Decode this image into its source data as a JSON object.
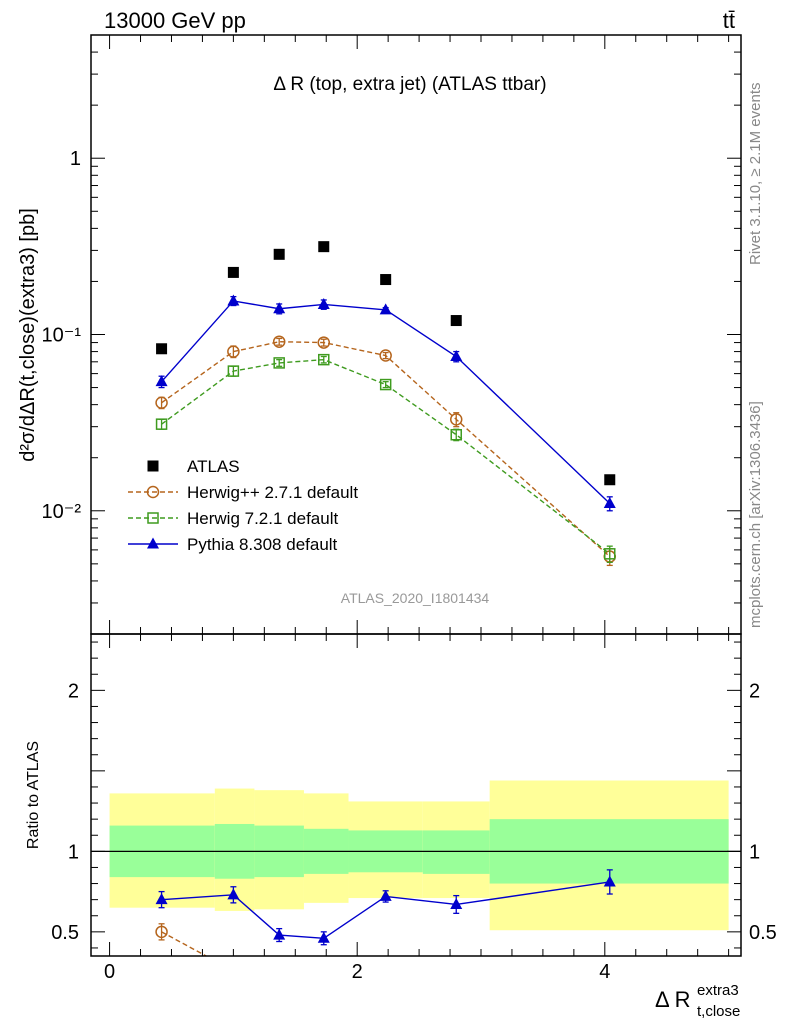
{
  "header": {
    "energy_label": "13000 GeV pp",
    "process_label": "tt̄",
    "plot_title": "Δ R (top, extra jet) (ATLAS ttbar)",
    "analysis_id": "ATLAS_2020_I1801434"
  },
  "side_labels": {
    "rivet": "Rivet 3.1.10, ≥ 2.1M events",
    "mcplots": "mcplots.cern.ch [arXiv:1306.3436]"
  },
  "axes": {
    "ylabel_main": "d²σ/dΔR(t,close)(extra3) [pb]",
    "ylabel_ratio": "Ratio to ATLAS",
    "xlabel_main": "Δ R",
    "xlabel_sup": "extra3",
    "xlabel_sub": "t,close"
  },
  "colors": {
    "atlas": "#000000",
    "herwigpp": "#b5651d",
    "herwig7": "#3f9b1f",
    "pythia": "#0000cc",
    "band_inner": "#99ff99",
    "band_outer": "#ffff99"
  },
  "chart_data": [
    {
      "type": "scatter",
      "panel": "main",
      "x_range": [
        -0.15,
        5.1
      ],
      "y_range": [
        0.002,
        5
      ],
      "y_scale": "log",
      "y_ticks": [
        {
          "value": 0.01,
          "label": "10⁻²"
        },
        {
          "value": 0.1,
          "label": "10⁻¹"
        },
        {
          "value": 1,
          "label": "1"
        }
      ],
      "x_ticks": [
        {
          "value": 0,
          "label": "0"
        },
        {
          "value": 2,
          "label": "2"
        },
        {
          "value": 4,
          "label": "4"
        }
      ],
      "legend_position": "bottom-left",
      "series": [
        {
          "name": "ATLAS",
          "style": "data",
          "points": [
            {
              "x": 0.42,
              "y": 0.083
            },
            {
              "x": 1.0,
              "y": 0.225
            },
            {
              "x": 1.37,
              "y": 0.285
            },
            {
              "x": 1.73,
              "y": 0.315
            },
            {
              "x": 2.23,
              "y": 0.205
            },
            {
              "x": 2.8,
              "y": 0.12
            },
            {
              "x": 4.04,
              "y": 0.015
            }
          ]
        },
        {
          "name": "Herwig++ 2.7.1 default",
          "style": "circle",
          "points": [
            {
              "x": 0.42,
              "y": 0.041,
              "err": 0.003
            },
            {
              "x": 1.0,
              "y": 0.08,
              "err": 0.006
            },
            {
              "x": 1.37,
              "y": 0.091,
              "err": 0.004
            },
            {
              "x": 1.73,
              "y": 0.09,
              "err": 0.004
            },
            {
              "x": 2.23,
              "y": 0.076,
              "err": 0.003
            },
            {
              "x": 2.8,
              "y": 0.033,
              "err": 0.003
            },
            {
              "x": 4.04,
              "y": 0.0055,
              "err": 0.0006
            }
          ]
        },
        {
          "name": "Herwig 7.2.1 default",
          "style": "square",
          "points": [
            {
              "x": 0.42,
              "y": 0.031,
              "err": 0.002
            },
            {
              "x": 1.0,
              "y": 0.062,
              "err": 0.004
            },
            {
              "x": 1.37,
              "y": 0.069,
              "err": 0.003
            },
            {
              "x": 1.73,
              "y": 0.072,
              "err": 0.003
            },
            {
              "x": 2.23,
              "y": 0.052,
              "err": 0.002
            },
            {
              "x": 2.8,
              "y": 0.027,
              "err": 0.002
            },
            {
              "x": 4.04,
              "y": 0.0057,
              "err": 0.0006
            }
          ]
        },
        {
          "name": "Pythia 8.308 default",
          "style": "triangle",
          "points": [
            {
              "x": 0.42,
              "y": 0.054,
              "err": 0.004
            },
            {
              "x": 1.0,
              "y": 0.155,
              "err": 0.009
            },
            {
              "x": 1.37,
              "y": 0.14,
              "err": 0.009
            },
            {
              "x": 1.73,
              "y": 0.148,
              "err": 0.009
            },
            {
              "x": 2.23,
              "y": 0.138,
              "err": 0.004
            },
            {
              "x": 2.8,
              "y": 0.075,
              "err": 0.005
            },
            {
              "x": 4.04,
              "y": 0.011,
              "err": 0.001
            }
          ]
        }
      ]
    },
    {
      "type": "line",
      "panel": "ratio",
      "x_range": [
        -0.15,
        5.1
      ],
      "y_range": [
        0.35,
        2.35
      ],
      "y_scale": "linear",
      "y_ticks": [
        {
          "value": 0.5,
          "label": "0.5"
        },
        {
          "value": 1,
          "label": "1"
        },
        {
          "value": 2,
          "label": "2"
        }
      ],
      "x_ticks": [
        {
          "value": 0,
          "label": "0"
        },
        {
          "value": 2,
          "label": "2"
        },
        {
          "value": 4,
          "label": "4"
        }
      ],
      "bands": [
        {
          "x0": 0.0,
          "x1": 0.85,
          "inner": [
            0.84,
            1.16
          ],
          "outer": [
            0.65,
            1.36
          ]
        },
        {
          "x0": 0.85,
          "x1": 1.17,
          "inner": [
            0.83,
            1.17
          ],
          "outer": [
            0.63,
            1.39
          ]
        },
        {
          "x0": 1.17,
          "x1": 1.57,
          "inner": [
            0.84,
            1.16
          ],
          "outer": [
            0.64,
            1.38
          ]
        },
        {
          "x0": 1.57,
          "x1": 1.93,
          "inner": [
            0.86,
            1.14
          ],
          "outer": [
            0.68,
            1.36
          ]
        },
        {
          "x0": 1.93,
          "x1": 2.53,
          "inner": [
            0.87,
            1.13
          ],
          "outer": [
            0.71,
            1.31
          ]
        },
        {
          "x0": 2.53,
          "x1": 3.07,
          "inner": [
            0.86,
            1.13
          ],
          "outer": [
            0.71,
            1.31
          ]
        },
        {
          "x0": 3.07,
          "x1": 5.0,
          "inner": [
            0.8,
            1.2
          ],
          "outer": [
            0.51,
            1.44
          ]
        }
      ],
      "series": [
        {
          "name": "Pythia 8.308 default",
          "style": "triangle",
          "points": [
            {
              "x": 0.42,
              "y": 0.7,
              "err": 0.05
            },
            {
              "x": 1.0,
              "y": 0.73,
              "err": 0.05
            },
            {
              "x": 1.37,
              "y": 0.48,
              "err": 0.04
            },
            {
              "x": 1.73,
              "y": 0.46,
              "err": 0.04
            },
            {
              "x": 2.23,
              "y": 0.72,
              "err": 0.035
            },
            {
              "x": 2.8,
              "y": 0.67,
              "err": 0.055
            },
            {
              "x": 4.04,
              "y": 0.81,
              "err": 0.075
            }
          ]
        },
        {
          "name": "Herwig++ 2.7.1 default",
          "style": "circle",
          "points": [
            {
              "x": 0.42,
              "y": 0.5,
              "err": 0.05
            },
            {
              "x": 0.78,
              "y": 0.35,
              "err": 0
            }
          ]
        }
      ]
    }
  ]
}
